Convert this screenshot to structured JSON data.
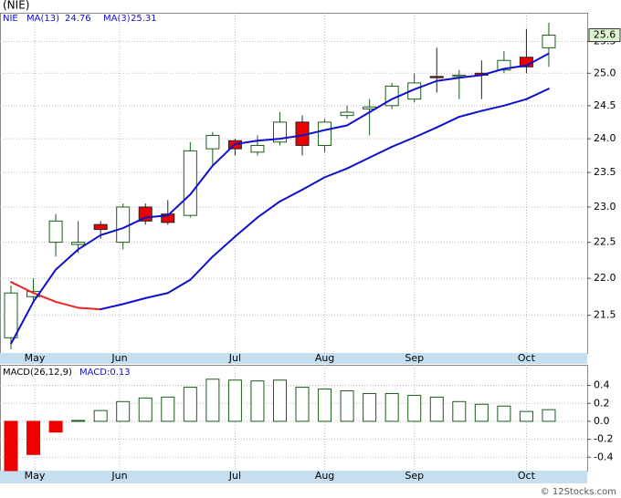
{
  "chart_data": [
    {
      "type": "candlestick",
      "title": "(NIE)",
      "name": "NIE",
      "log_scale": true,
      "grid": true,
      "categories": [
        null,
        null,
        null,
        null,
        null,
        null,
        null,
        null,
        null,
        null,
        null,
        null,
        null,
        null,
        null,
        null,
        null,
        null,
        null,
        null,
        null,
        null,
        null,
        null,
        null
      ],
      "open": [
        21.2,
        21.75,
        22.5,
        22.47,
        22.75,
        22.5,
        23.0,
        22.9,
        22.88,
        23.85,
        23.97,
        23.8,
        23.95,
        24.25,
        23.9,
        24.35,
        24.45,
        24.5,
        24.6,
        24.95,
        24.95,
        25.0,
        25.05,
        25.25,
        25.4
      ],
      "high": [
        21.9,
        22.0,
        22.9,
        22.8,
        22.8,
        23.05,
        23.05,
        23.1,
        23.95,
        24.1,
        24.0,
        24.05,
        24.4,
        24.35,
        24.3,
        24.5,
        24.6,
        24.85,
        25.0,
        25.4,
        25.05,
        25.2,
        25.35,
        25.7,
        25.8
      ],
      "low": [
        21.05,
        21.7,
        22.3,
        22.35,
        22.55,
        22.4,
        22.75,
        22.75,
        22.85,
        23.6,
        23.75,
        23.75,
        23.9,
        23.75,
        23.8,
        24.3,
        24.05,
        24.45,
        24.55,
        24.7,
        24.6,
        24.6,
        25.0,
        25.0,
        25.1
      ],
      "close": [
        21.8,
        21.82,
        22.8,
        22.5,
        22.68,
        23.0,
        22.8,
        22.78,
        23.82,
        24.05,
        23.85,
        23.9,
        24.25,
        23.9,
        24.25,
        24.4,
        24.48,
        24.8,
        24.85,
        24.93,
        24.97,
        24.97,
        25.2,
        25.1,
        25.6
      ],
      "up_color": "#ffffff",
      "down_color": "#ee0000",
      "candle_stroke": "#1a5c1a",
      "series": [
        {
          "name": "MA(13)",
          "color": "#1010cc",
          "down_color": "#ee2222",
          "values": [
            21.95,
            21.8,
            21.68,
            21.6,
            21.58,
            21.65,
            21.73,
            21.8,
            21.98,
            22.3,
            22.58,
            22.85,
            23.08,
            23.25,
            23.43,
            23.56,
            23.72,
            23.88,
            24.02,
            24.17,
            24.33,
            24.42,
            24.5,
            24.6,
            24.76
          ]
        },
        {
          "name": "MA(3)",
          "color": "#1010cc",
          "values": [
            21.12,
            21.68,
            22.12,
            22.4,
            22.6,
            22.7,
            22.85,
            22.88,
            23.18,
            23.6,
            23.92,
            23.97,
            24.0,
            24.05,
            24.13,
            24.2,
            24.4,
            24.6,
            24.75,
            24.88,
            24.93,
            24.97,
            25.07,
            25.12,
            25.31
          ]
        }
      ],
      "ylim": [
        21.0,
        25.96
      ],
      "yticks": [
        21.5,
        {
          "value": 22,
          "label": "22.0"
        },
        22.5,
        {
          "value": 23,
          "label": "23.0"
        },
        23.5,
        {
          "value": 24,
          "label": "24.0"
        },
        24.5,
        {
          "value": 25,
          "label": "25.0"
        },
        25.5
      ],
      "xticks": [
        {
          "value": 1.06,
          "label": "May"
        },
        {
          "value": 4.85,
          "label": "Jun"
        },
        {
          "value": 10,
          "label": "Jul"
        },
        {
          "value": 14,
          "label": "Aug"
        },
        {
          "value": 18,
          "label": "Sep"
        },
        {
          "value": 23,
          "label": "Oct"
        }
      ],
      "watermark": "© 12Stocks.com"
    },
    {
      "type": "bar",
      "title": "MACD(26,12,9)",
      "legend": "MACD:0.13",
      "grid": true,
      "categories": [
        null,
        null,
        null,
        null,
        null,
        null,
        null,
        null,
        null,
        null,
        null,
        null,
        null,
        null,
        null,
        null,
        null,
        null,
        null,
        null,
        null,
        null,
        null,
        null,
        null
      ],
      "values": [
        -0.55,
        -0.37,
        -0.12,
        0.01,
        0.12,
        0.22,
        0.26,
        0.27,
        0.38,
        0.47,
        0.46,
        0.45,
        0.46,
        0.38,
        0.36,
        0.34,
        0.31,
        0.31,
        0.29,
        0.27,
        0.22,
        0.19,
        0.17,
        0.11,
        0.13
      ],
      "up_color": "#ffffff",
      "down_color": "#ee0000",
      "stroke": "#1a5c1a",
      "ylim": [
        -0.55,
        0.63
      ],
      "yticks": [
        -0.4,
        -0.2,
        {
          "value": 0,
          "label": "0.0"
        },
        0.2,
        0.4
      ],
      "xticks": [
        {
          "value": 1.06,
          "label": "May"
        },
        {
          "value": 4.85,
          "label": "Jun"
        },
        {
          "value": 10,
          "label": "Jul"
        },
        {
          "value": 14,
          "label": "Aug"
        },
        {
          "value": 18,
          "label": "Sep"
        },
        {
          "value": 23,
          "label": "Oct"
        }
      ]
    }
  ]
}
